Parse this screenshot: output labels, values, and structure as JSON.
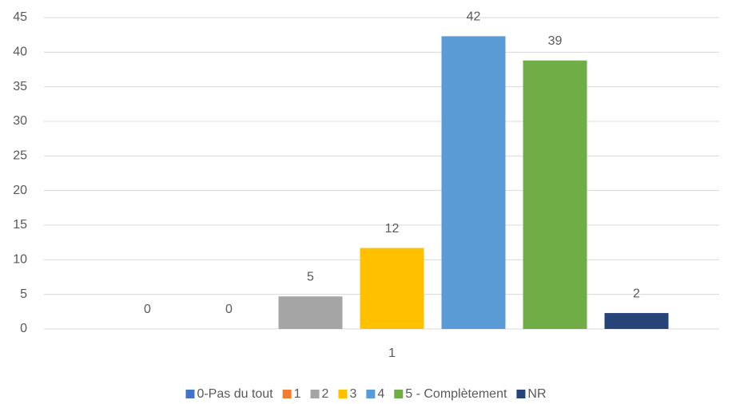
{
  "chart_data": {
    "type": "bar",
    "categories": [
      "1"
    ],
    "series": [
      {
        "name": "0-Pas du tout",
        "color": "#4472c4",
        "values": [
          0
        ],
        "value_labels": [
          "0"
        ]
      },
      {
        "name": "1",
        "color": "#ed7d31",
        "values": [
          0
        ],
        "value_labels": [
          "0"
        ]
      },
      {
        "name": "2",
        "color": "#a5a5a5",
        "values": [
          4.7
        ],
        "value_labels": [
          "5"
        ]
      },
      {
        "name": "3",
        "color": "#ffc000",
        "values": [
          11.7
        ],
        "value_labels": [
          "12"
        ]
      },
      {
        "name": "4",
        "color": "#5b9bd5",
        "values": [
          42.3
        ],
        "value_labels": [
          "42"
        ]
      },
      {
        "name": "5 - Complètement",
        "color": "#70ad47",
        "values": [
          38.8
        ],
        "value_labels": [
          "39"
        ]
      },
      {
        "name": "NR",
        "color": "#264478",
        "values": [
          2.3
        ],
        "value_labels": [
          "2"
        ]
      }
    ],
    "ylim": [
      0,
      45
    ],
    "yticks": [
      0,
      5,
      10,
      15,
      20,
      25,
      30,
      35,
      40,
      45
    ],
    "grid": true,
    "legend": "bottom"
  }
}
